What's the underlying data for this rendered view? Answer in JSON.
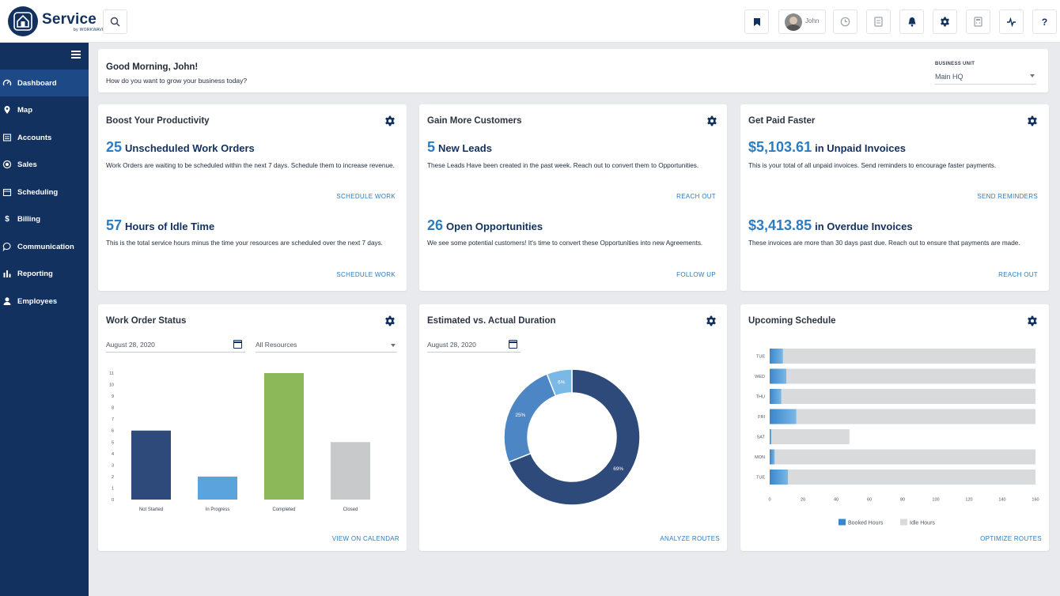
{
  "app": {
    "brand": "Service",
    "brand_sub": "by WORKWAVE"
  },
  "header": {
    "user_name": "John"
  },
  "sidebar": {
    "items": [
      {
        "label": "Dashboard",
        "icon": "gauge-icon",
        "active": true
      },
      {
        "label": "Map",
        "icon": "map-pin-icon"
      },
      {
        "label": "Accounts",
        "icon": "list-icon"
      },
      {
        "label": "Sales",
        "icon": "target-icon"
      },
      {
        "label": "Scheduling",
        "icon": "calendar-icon"
      },
      {
        "label": "Billing",
        "icon": "dollar-icon"
      },
      {
        "label": "Communication",
        "icon": "chat-icon"
      },
      {
        "label": "Reporting",
        "icon": "bar-chart-icon"
      },
      {
        "label": "Employees",
        "icon": "user-icon"
      }
    ]
  },
  "greeting": {
    "title": "Good Morning, John!",
    "subtitle": "How do you want to grow your business today?",
    "business_unit_label": "BUSINESS UNIT",
    "business_unit_value": "Main HQ"
  },
  "productivity": {
    "title": "Boost Your Productivity",
    "m1_num": "25",
    "m1_label": "Unscheduled Work Orders",
    "m1_desc": "Work Orders are waiting to be scheduled within the next 7 days. Schedule them to increase revenue.",
    "m1_action": "SCHEDULE WORK",
    "m2_num": "57",
    "m2_label": "Hours of Idle Time",
    "m2_desc": "This is the total service hours minus the time your resources are scheduled over the next 7 days.",
    "m2_action": "SCHEDULE WORK"
  },
  "customers": {
    "title": "Gain More Customers",
    "m1_num": "5",
    "m1_label": "New Leads",
    "m1_desc": "These Leads Have been created in the past week. Reach out to convert them to Opportunities.",
    "m1_action": "REACH OUT",
    "m2_num": "26",
    "m2_label": "Open Opportunities",
    "m2_desc": "We see some potential customers! It's time to convert these Opportunities into new Agreements.",
    "m2_action": "FOLLOW UP"
  },
  "paid": {
    "title": "Get Paid Faster",
    "m1_num": "$5,103.61",
    "m1_label": "in Unpaid Invoices",
    "m1_desc": "This is your total of all unpaid invoices. Send reminders to encourage faster payments.",
    "m1_action": "SEND REMINDERS",
    "m2_num": "$3,413.85",
    "m2_label": "in Overdue Invoices",
    "m2_desc": "These invoices are more than 30 days past due. Reach out to ensure that payments are made.",
    "m2_action": "REACH OUT"
  },
  "work_order_status": {
    "title": "Work Order Status",
    "date": "August 28, 2020",
    "resources": "All Resources",
    "action": "VIEW ON CALENDAR"
  },
  "duration": {
    "title": "Estimated vs. Actual Duration",
    "date": "August 28, 2020",
    "action": "ANALYZE ROUTES"
  },
  "schedule": {
    "title": "Upcoming Schedule",
    "action": "OPTIMIZE ROUTES"
  },
  "colors": {
    "navy": "#12315e",
    "accent": "#2a7cc4",
    "green": "#8db85a",
    "light_blue": "#5aa3dc",
    "grey": "#c8c9cb"
  },
  "chart_data": [
    {
      "type": "bar",
      "title": "Work Order Status",
      "categories": [
        "Not Started",
        "In Progress",
        "Completed",
        "Closed"
      ],
      "values": [
        6,
        2,
        11,
        5
      ],
      "colors": [
        "#2d4a7a",
        "#5aa3dc",
        "#8db85a",
        "#c8c9cb"
      ],
      "ylim": [
        0,
        11
      ],
      "yticks": [
        0,
        1,
        2,
        3,
        4,
        5,
        6,
        7,
        8,
        9,
        10,
        11
      ]
    },
    {
      "type": "pie",
      "title": "Estimated vs. Actual Duration",
      "labels": [
        "69%",
        "25%",
        "6%"
      ],
      "values": [
        69,
        25,
        6
      ],
      "colors": [
        "#2d4a7a",
        "#4d86c4",
        "#7ab8e6"
      ]
    },
    {
      "type": "bar",
      "orientation": "horizontal",
      "title": "Upcoming Schedule",
      "categories": [
        "TUE",
        "WED",
        "THU",
        "FRI",
        "SAT",
        "MON",
        "TUE"
      ],
      "series": [
        {
          "name": "Booked Hours",
          "values": [
            8,
            10,
            7,
            16,
            1,
            3,
            11
          ]
        },
        {
          "name": "Idle Hours",
          "values": [
            152,
            150,
            153,
            144,
            47,
            157,
            149
          ]
        }
      ],
      "xlim": [
        0,
        160
      ],
      "xticks": [
        0,
        20,
        40,
        60,
        80,
        100,
        120,
        140,
        160
      ]
    }
  ]
}
